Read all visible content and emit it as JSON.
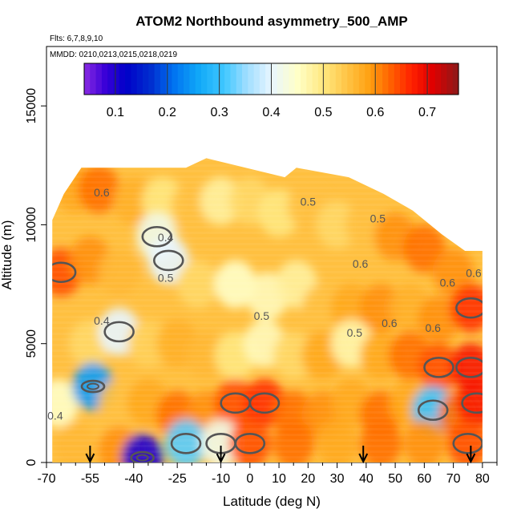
{
  "chart_data": {
    "type": "heatmap",
    "title": "ATOM2 Northbound asymmetry_500_AMP",
    "subtitle_flights": "Flts: 6,7,8,9,10",
    "subtitle_dates": "MMDD: 0210,0213,0215,0218,0219",
    "xlabel": "Latitude (deg N)",
    "ylabel": "Altitude (m)",
    "xlim": [
      -70,
      85
    ],
    "ylim": [
      0,
      17500
    ],
    "x_ticks": [
      -70,
      -55,
      -40,
      -25,
      -10,
      0,
      10,
      20,
      30,
      40,
      50,
      60,
      70,
      80
    ],
    "x_tick_labels": [
      "-70",
      "-55",
      "-40",
      "-25",
      "-10",
      "0",
      "10",
      "20",
      "30",
      "40",
      "50",
      "60",
      "70",
      "80"
    ],
    "x_minor_ticks": [
      -65,
      -60,
      -50,
      -45,
      -35,
      -30,
      -20,
      -15,
      -5,
      5,
      15,
      25,
      35,
      45,
      55,
      65,
      75,
      85
    ],
    "y_ticks": [
      0,
      5000,
      10000,
      15000
    ],
    "y_tick_labels": [
      "0",
      "5000",
      "10000",
      "15000"
    ],
    "colorbar": {
      "range": [
        0.04,
        0.76
      ],
      "ticks": [
        0.1,
        0.2,
        0.3,
        0.4,
        0.5,
        0.6,
        0.7
      ],
      "tick_labels": [
        "0.1",
        "0.2",
        "0.3",
        "0.4",
        "0.5",
        "0.6",
        "0.7"
      ],
      "stops": [
        {
          "v": 0.04,
          "c": "#8a2be2"
        },
        {
          "v": 0.08,
          "c": "#3a00d8"
        },
        {
          "v": 0.12,
          "c": "#0000c8"
        },
        {
          "v": 0.17,
          "c": "#0030d0"
        },
        {
          "v": 0.21,
          "c": "#0070f0"
        },
        {
          "v": 0.26,
          "c": "#10a8f8"
        },
        {
          "v": 0.31,
          "c": "#40c8ff"
        },
        {
          "v": 0.35,
          "c": "#9adcff"
        },
        {
          "v": 0.4,
          "c": "#e8f6ff"
        },
        {
          "v": 0.45,
          "c": "#ffffc8"
        },
        {
          "v": 0.5,
          "c": "#ffe880"
        },
        {
          "v": 0.55,
          "c": "#ffc040"
        },
        {
          "v": 0.59,
          "c": "#ffa010"
        },
        {
          "v": 0.63,
          "c": "#ff6000"
        },
        {
          "v": 0.67,
          "c": "#ff2000"
        },
        {
          "v": 0.71,
          "c": "#e00000"
        },
        {
          "v": 0.76,
          "c": "#8b1a1a"
        }
      ]
    },
    "arrows_latitude": [
      -55,
      -10,
      39,
      76
    ],
    "grid": false,
    "legend": "top colorbar",
    "profile_ceiling": [
      {
        "lat": -68,
        "alt": 10200
      },
      {
        "lat": -64,
        "alt": 11300
      },
      {
        "lat": -58,
        "alt": 12400
      },
      {
        "lat": -22,
        "alt": 12400
      },
      {
        "lat": -15,
        "alt": 12800
      },
      {
        "lat": 12,
        "alt": 12000
      },
      {
        "lat": 16,
        "alt": 12400
      },
      {
        "lat": 34,
        "alt": 12000
      },
      {
        "lat": 46,
        "alt": 11300
      },
      {
        "lat": 56,
        "alt": 10600
      },
      {
        "lat": 66,
        "alt": 9600
      },
      {
        "lat": 74,
        "alt": 8900
      },
      {
        "lat": 80,
        "alt": 8900
      }
    ],
    "cells": [
      {
        "lat": -60,
        "alt": 11500,
        "v": 0.58
      },
      {
        "lat": -52,
        "alt": 11500,
        "v": 0.62
      },
      {
        "lat": -40,
        "alt": 11000,
        "v": 0.57
      },
      {
        "lat": -30,
        "alt": 11000,
        "v": 0.5
      },
      {
        "lat": -20,
        "alt": 10800,
        "v": 0.55
      },
      {
        "lat": -10,
        "alt": 11000,
        "v": 0.48
      },
      {
        "lat": 0,
        "alt": 11000,
        "v": 0.52
      },
      {
        "lat": 10,
        "alt": 10500,
        "v": 0.5
      },
      {
        "lat": 20,
        "alt": 10800,
        "v": 0.55
      },
      {
        "lat": 30,
        "alt": 10000,
        "v": 0.52
      },
      {
        "lat": 40,
        "alt": 10000,
        "v": 0.55
      },
      {
        "lat": 50,
        "alt": 9500,
        "v": 0.6
      },
      {
        "lat": 60,
        "alt": 9000,
        "v": 0.62
      },
      {
        "lat": 70,
        "alt": 8000,
        "v": 0.6
      },
      {
        "lat": -65,
        "alt": 8000,
        "v": 0.64
      },
      {
        "lat": -55,
        "alt": 8500,
        "v": 0.6
      },
      {
        "lat": -45,
        "alt": 8000,
        "v": 0.56
      },
      {
        "lat": -32,
        "alt": 9500,
        "v": 0.42
      },
      {
        "lat": -28,
        "alt": 8500,
        "v": 0.4
      },
      {
        "lat": -18,
        "alt": 7500,
        "v": 0.52
      },
      {
        "lat": -5,
        "alt": 7500,
        "v": 0.45
      },
      {
        "lat": 6,
        "alt": 7000,
        "v": 0.46
      },
      {
        "lat": 16,
        "alt": 7500,
        "v": 0.48
      },
      {
        "lat": 25,
        "alt": 6500,
        "v": 0.55
      },
      {
        "lat": 35,
        "alt": 6500,
        "v": 0.58
      },
      {
        "lat": 45,
        "alt": 6500,
        "v": 0.6
      },
      {
        "lat": 55,
        "alt": 6500,
        "v": 0.57
      },
      {
        "lat": 65,
        "alt": 6000,
        "v": 0.6
      },
      {
        "lat": 76,
        "alt": 6500,
        "v": 0.66
      },
      {
        "lat": -66,
        "alt": 5000,
        "v": 0.55
      },
      {
        "lat": -55,
        "alt": 5000,
        "v": 0.52
      },
      {
        "lat": -45,
        "alt": 5500,
        "v": 0.4
      },
      {
        "lat": -35,
        "alt": 5000,
        "v": 0.53
      },
      {
        "lat": -25,
        "alt": 5000,
        "v": 0.57
      },
      {
        "lat": -15,
        "alt": 4500,
        "v": 0.56
      },
      {
        "lat": -5,
        "alt": 4500,
        "v": 0.5
      },
      {
        "lat": 5,
        "alt": 5000,
        "v": 0.46
      },
      {
        "lat": 15,
        "alt": 4500,
        "v": 0.52
      },
      {
        "lat": 25,
        "alt": 4500,
        "v": 0.58
      },
      {
        "lat": 35,
        "alt": 5000,
        "v": 0.47
      },
      {
        "lat": 45,
        "alt": 4500,
        "v": 0.58
      },
      {
        "lat": 55,
        "alt": 4500,
        "v": 0.62
      },
      {
        "lat": 65,
        "alt": 4000,
        "v": 0.64
      },
      {
        "lat": 76,
        "alt": 4000,
        "v": 0.68
      },
      {
        "lat": -66,
        "alt": 2500,
        "v": 0.45
      },
      {
        "lat": -54,
        "alt": 3200,
        "v": 0.25
      },
      {
        "lat": -45,
        "alt": 2500,
        "v": 0.55
      },
      {
        "lat": -35,
        "alt": 2500,
        "v": 0.58
      },
      {
        "lat": -25,
        "alt": 2000,
        "v": 0.62
      },
      {
        "lat": -15,
        "alt": 2000,
        "v": 0.6
      },
      {
        "lat": -5,
        "alt": 2500,
        "v": 0.64
      },
      {
        "lat": 5,
        "alt": 2500,
        "v": 0.66
      },
      {
        "lat": 15,
        "alt": 2000,
        "v": 0.62
      },
      {
        "lat": 25,
        "alt": 2000,
        "v": 0.6
      },
      {
        "lat": 35,
        "alt": 2500,
        "v": 0.58
      },
      {
        "lat": 45,
        "alt": 2000,
        "v": 0.62
      },
      {
        "lat": 55,
        "alt": 2500,
        "v": 0.58
      },
      {
        "lat": 63,
        "alt": 2200,
        "v": 0.3
      },
      {
        "lat": 72,
        "alt": 2000,
        "v": 0.62
      },
      {
        "lat": 78,
        "alt": 2500,
        "v": 0.68
      },
      {
        "lat": -60,
        "alt": 700,
        "v": 0.56
      },
      {
        "lat": -45,
        "alt": 500,
        "v": 0.6
      },
      {
        "lat": -37,
        "alt": 200,
        "v": 0.1
      },
      {
        "lat": -22,
        "alt": 800,
        "v": 0.32
      },
      {
        "lat": -10,
        "alt": 800,
        "v": 0.42
      },
      {
        "lat": 0,
        "alt": 800,
        "v": 0.64
      },
      {
        "lat": 15,
        "alt": 800,
        "v": 0.62
      },
      {
        "lat": 30,
        "alt": 800,
        "v": 0.58
      },
      {
        "lat": 45,
        "alt": 800,
        "v": 0.62
      },
      {
        "lat": 60,
        "alt": 800,
        "v": 0.6
      },
      {
        "lat": 75,
        "alt": 800,
        "v": 0.64
      }
    ],
    "contour_labels": [
      {
        "text": "0.6",
        "lat": -51,
        "alt": 11200
      },
      {
        "text": "0.4",
        "lat": -29,
        "alt": 9300
      },
      {
        "text": "0.5",
        "lat": -29,
        "alt": 7600
      },
      {
        "text": "0.4",
        "lat": -51,
        "alt": 5800
      },
      {
        "text": "0.5",
        "lat": 4,
        "alt": 6000
      },
      {
        "text": "0.5",
        "lat": 20,
        "alt": 10800
      },
      {
        "text": "0.5",
        "lat": 44,
        "alt": 10100
      },
      {
        "text": "0.6",
        "lat": 38,
        "alt": 8200
      },
      {
        "text": "0.5",
        "lat": 36,
        "alt": 5300
      },
      {
        "text": "0.6",
        "lat": 48,
        "alt": 5700
      },
      {
        "text": "0.6",
        "lat": 63,
        "alt": 5500
      },
      {
        "text": "0.6",
        "lat": 68,
        "alt": 7400
      },
      {
        "text": "0.6",
        "lat": 77,
        "alt": 7800
      },
      {
        "text": "0.4",
        "lat": -67,
        "alt": 1800
      }
    ]
  }
}
